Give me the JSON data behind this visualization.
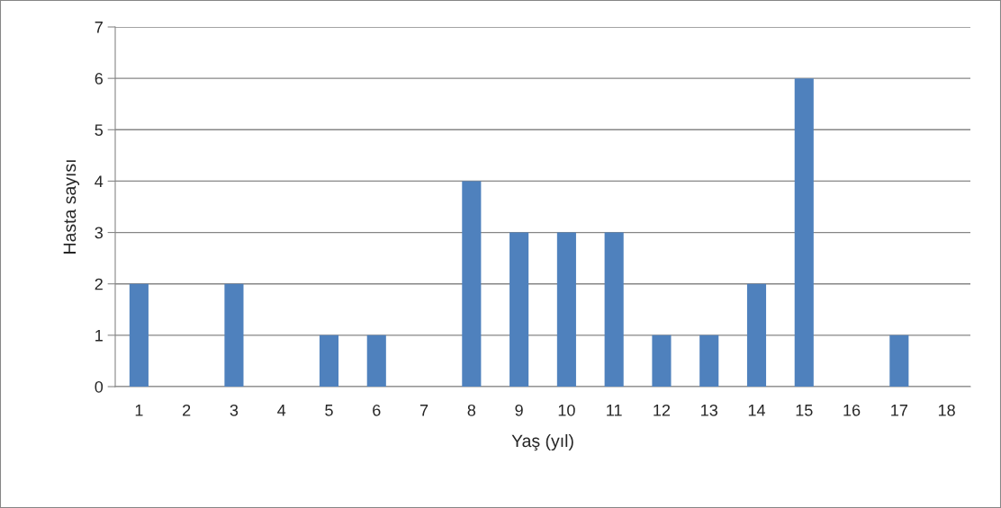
{
  "chart_data": {
    "type": "bar",
    "xlabel": "Yaş (yıl)",
    "ylabel": "Hasta sayısı",
    "categories": [
      "1",
      "2",
      "3",
      "4",
      "5",
      "6",
      "7",
      "8",
      "9",
      "10",
      "11",
      "12",
      "13",
      "14",
      "15",
      "16",
      "17",
      "18"
    ],
    "values": [
      2,
      0,
      2,
      0,
      1,
      1,
      0,
      4,
      3,
      3,
      3,
      1,
      1,
      2,
      6,
      0,
      1,
      0
    ],
    "color": "#4f81bd",
    "ylim": [
      0,
      7
    ],
    "yticks": [
      0,
      1,
      2,
      3,
      4,
      5,
      6,
      7
    ],
    "grid": "y",
    "legend": false
  }
}
